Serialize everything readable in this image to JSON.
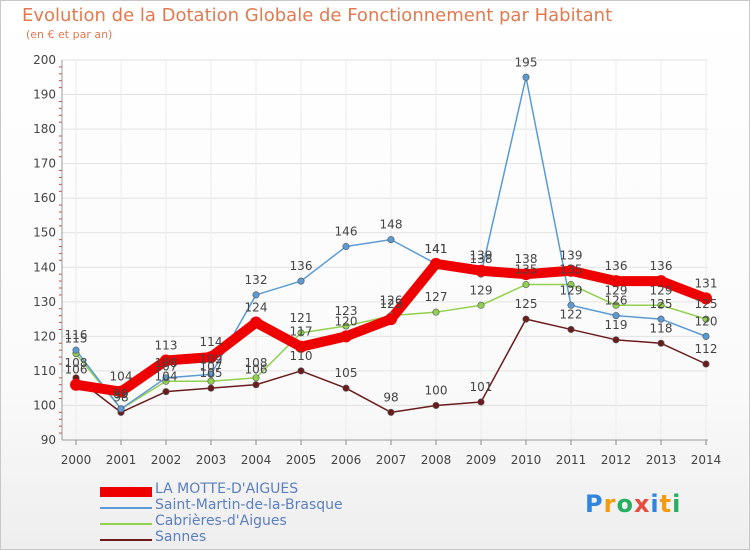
{
  "title": "Evolution de la Dotation Globale de Fonctionnement par Habitant",
  "subtitle": "(en € et par an)",
  "brand": {
    "name": "Proxiti",
    "letters": [
      "P",
      "r",
      "o",
      "x",
      "i",
      "t",
      "i"
    ],
    "colors": [
      "#2e86de",
      "#f39c12",
      "#27ae60",
      "#e74c3c",
      "#2e86de",
      "#f39c12",
      "#27ae60"
    ]
  },
  "chart_data": {
    "type": "line",
    "title": "Evolution de la Dotation Globale de Fonctionnement par Habitant",
    "ylabel": "(en € et par an)",
    "x": [
      "2000",
      "2001",
      "2002",
      "2003",
      "2004",
      "2005",
      "2006",
      "2007",
      "2008",
      "2009",
      "2010",
      "2011",
      "2012",
      "2013",
      "2014"
    ],
    "ylim": [
      90,
      200
    ],
    "yticks": [
      90,
      100,
      110,
      120,
      130,
      140,
      150,
      160,
      170,
      180,
      190,
      200
    ],
    "series": [
      {
        "name": "LA MOTTE-D'AIGUES",
        "color": "#ee0000",
        "values": [
          106,
          104,
          113,
          114,
          124,
          117,
          120,
          125,
          141,
          139,
          138,
          139,
          136,
          136,
          131
        ],
        "labels": [
          "106",
          "104",
          "113",
          "114",
          "124",
          "117",
          "120",
          "125",
          "141",
          "139",
          "138",
          "139",
          "136",
          "136",
          "131"
        ]
      },
      {
        "name": "Saint-Martin-de-la-Brasque",
        "color": "#5b9bd5",
        "values": [
          116,
          99,
          108,
          109,
          132,
          136,
          146,
          148,
          141,
          138,
          195,
          129,
          126,
          125,
          120
        ],
        "labels": [
          "116",
          "99",
          "108",
          "109",
          "132",
          "136",
          "146",
          "148",
          "141",
          "138",
          "195",
          "129",
          "126",
          "125",
          "120"
        ]
      },
      {
        "name": "Cabrières-d'Aigues",
        "color": "#92d050",
        "values": [
          115,
          99,
          107,
          107,
          108,
          121,
          123,
          126,
          127,
          129,
          135,
          135,
          129,
          129,
          125
        ],
        "labels": [
          "115",
          "99",
          "107",
          "107",
          "108",
          "121",
          "123",
          "126",
          "127",
          "129",
          "135",
          "135",
          "129",
          "129",
          "125"
        ]
      },
      {
        "name": "Sannes",
        "color": "#6b1c1c",
        "values": [
          108,
          98,
          104,
          105,
          106,
          110,
          105,
          98,
          100,
          101,
          125,
          122,
          119,
          118,
          112
        ],
        "labels": [
          "108",
          "98",
          "104",
          "105",
          "106",
          "110",
          "105",
          "98",
          "100",
          "101",
          "125",
          "122",
          "119",
          "118",
          "112"
        ]
      }
    ]
  }
}
